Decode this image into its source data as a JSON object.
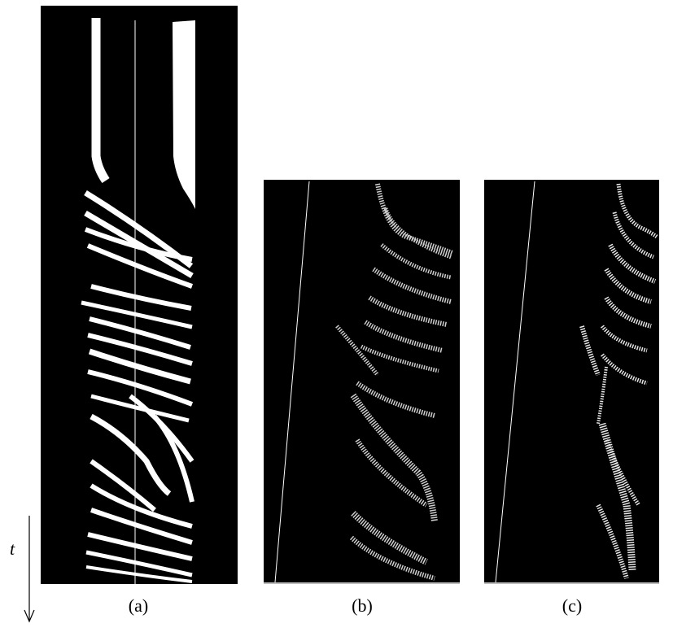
{
  "figure": {
    "time_axis_label": "t",
    "panels": [
      {
        "id": "a",
        "caption": "(a)"
      },
      {
        "id": "b",
        "caption": "(b)"
      },
      {
        "id": "c",
        "caption": "(c)"
      }
    ],
    "colors": {
      "background": "#000000",
      "foreground": "#ffffff",
      "baseline": "#bdbdbd"
    }
  }
}
